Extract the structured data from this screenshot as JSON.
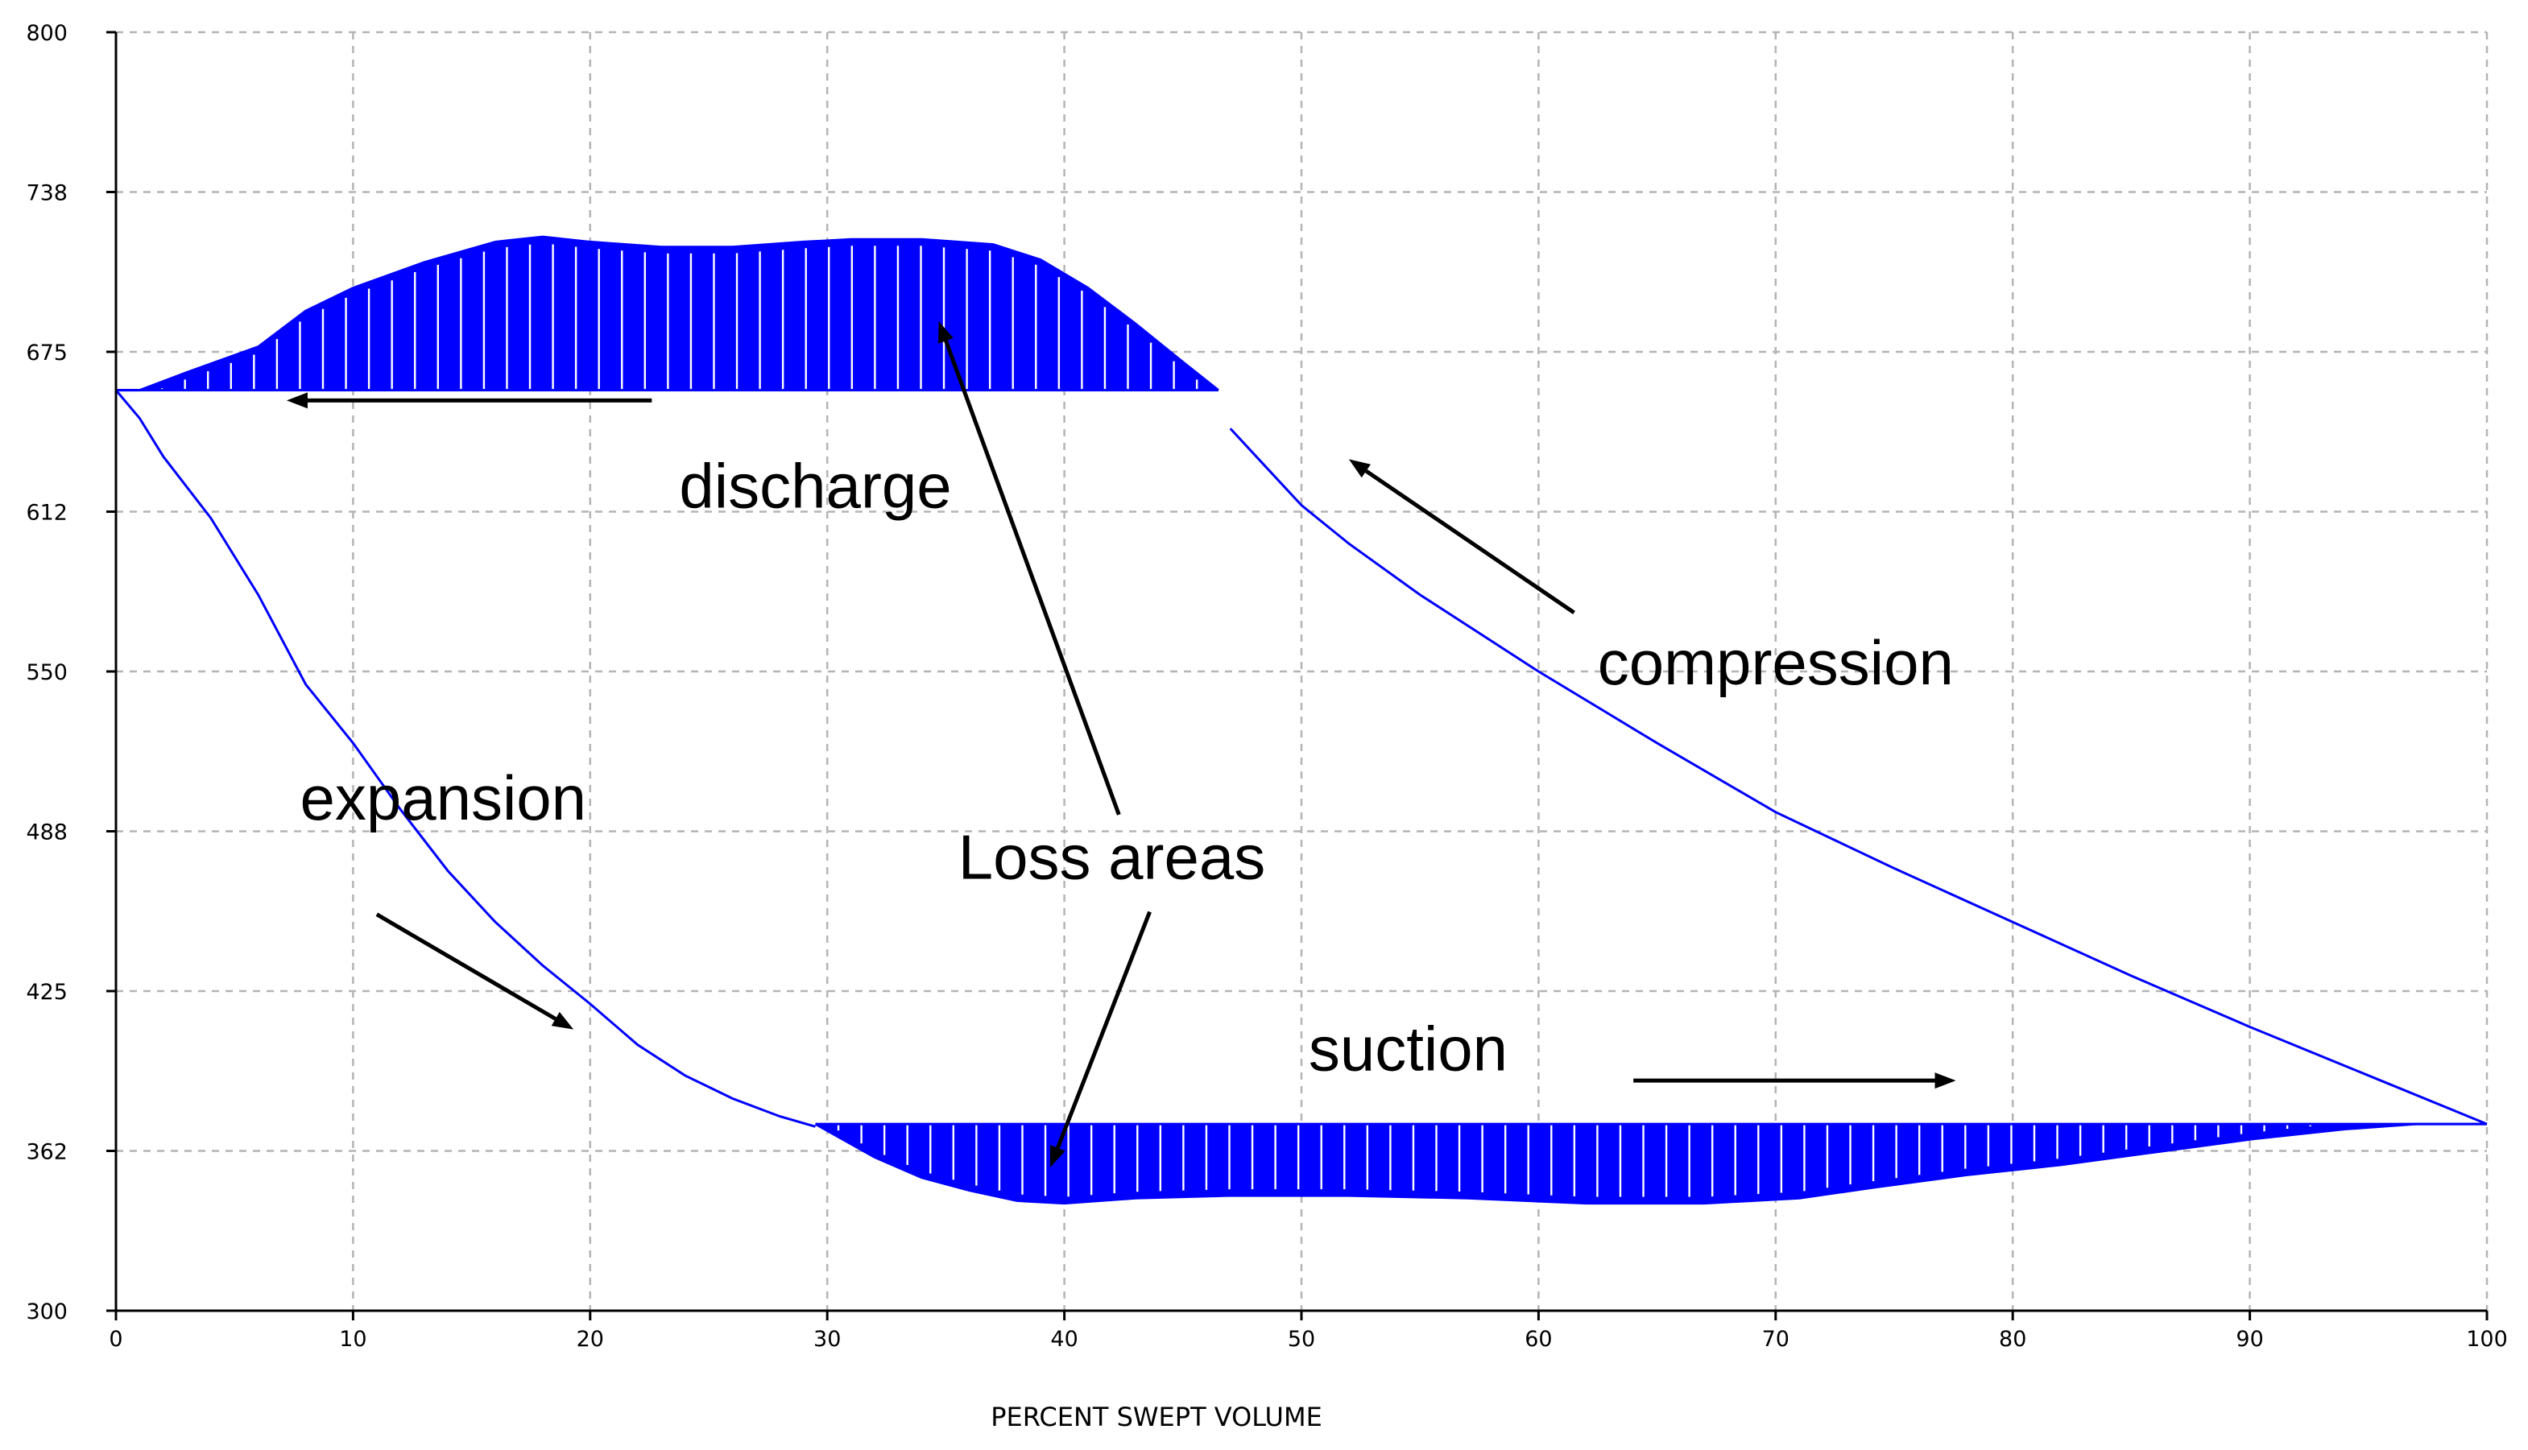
{
  "chart_data": {
    "type": "line",
    "title": "",
    "xlabel": "PERCENT SWEPT VOLUME",
    "ylabel": "",
    "xlim": [
      0,
      100
    ],
    "ylim": [
      300,
      800
    ],
    "x_ticks": [
      "0",
      "10",
      "20",
      "30",
      "40",
      "50",
      "60",
      "70",
      "80",
      "90",
      "100"
    ],
    "y_ticks": [
      "300",
      "362",
      "425",
      "488",
      "550",
      "612",
      "675",
      "738",
      "800"
    ],
    "grid": true,
    "colors": {
      "trace": "#0000ff",
      "grid": "#b4b4b4",
      "text": "#000000"
    },
    "reference_levels": {
      "discharge_pressure": 660,
      "suction_pressure": 373
    },
    "series": [
      {
        "name": "compression",
        "x": [
          100,
          95,
          90,
          85,
          80,
          75,
          70,
          65,
          60,
          55,
          52,
          50,
          48.5,
          47
        ],
        "y": [
          373,
          392,
          411,
          431,
          452,
          473,
          495,
          522,
          550,
          580,
          600,
          615,
          630,
          645
        ]
      },
      {
        "name": "discharge",
        "x": [
          0,
          1,
          3,
          6,
          8,
          10,
          13,
          16,
          18,
          20,
          23,
          26,
          29,
          31,
          34,
          37,
          39,
          41,
          43,
          45,
          46.5
        ],
        "y": [
          660,
          660,
          667,
          677,
          691,
          700,
          710,
          718,
          720,
          718,
          716,
          716,
          718,
          719,
          719,
          717,
          711,
          700,
          686,
          671,
          660
        ]
      },
      {
        "name": "expansion",
        "x": [
          0,
          1,
          2,
          4,
          6,
          8,
          10,
          12,
          14,
          16,
          18,
          20,
          22,
          24,
          26,
          28,
          29.5
        ],
        "y": [
          660,
          649,
          634,
          610,
          580,
          545,
          522,
          496,
          472,
          452,
          435,
          420,
          404,
          392,
          383,
          376,
          372
        ]
      },
      {
        "name": "suction",
        "x": [
          29.5,
          32,
          34,
          36,
          38,
          40,
          43,
          47,
          52,
          57,
          62,
          67,
          71,
          74,
          78,
          82,
          86,
          90,
          94,
          97,
          100
        ],
        "y": [
          373,
          360,
          352,
          347,
          343,
          342,
          344,
          345,
          345,
          344,
          342,
          342,
          344,
          348,
          353,
          357,
          362,
          367,
          371,
          373,
          373
        ]
      }
    ],
    "annotations": [
      {
        "text": "discharge",
        "x": 29.5,
        "y": 614
      },
      {
        "text": "compression",
        "x": 70,
        "y": 545
      },
      {
        "text": "expansion",
        "x": 13.8,
        "y": 492
      },
      {
        "text": "Loss areas",
        "x": 42,
        "y": 469
      },
      {
        "text": "suction",
        "x": 54.5,
        "y": 394
      }
    ],
    "arrows": [
      {
        "name": "discharge",
        "from": [
          22.6,
          656
        ],
        "to": [
          7.2,
          656
        ]
      },
      {
        "name": "compression",
        "from": [
          61.5,
          573
        ],
        "to": [
          52,
          633
        ]
      },
      {
        "name": "expansion",
        "from": [
          11,
          455
        ],
        "to": [
          19.3,
          410
        ]
      },
      {
        "name": "suction",
        "from": [
          64,
          390
        ],
        "to": [
          77.6,
          390
        ]
      },
      {
        "name": "loss-areas-top",
        "from": [
          42.3,
          494
        ],
        "to": [
          34.7,
          687
        ]
      },
      {
        "name": "loss-areas-bottom",
        "from": [
          43.6,
          456
        ],
        "to": [
          39.4,
          356
        ]
      }
    ]
  }
}
